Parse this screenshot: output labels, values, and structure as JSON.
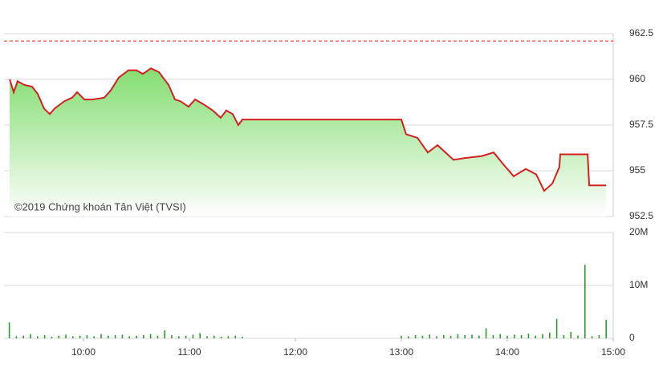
{
  "chart_data": [
    {
      "type": "line",
      "annotation": "©2019 Chứng khoán Tân Việt (TVSI)",
      "xlim": [
        555,
        900
      ],
      "ylim": [
        952.5,
        962.5
      ],
      "yticks": [
        962.5,
        960,
        957.5,
        955,
        952.5
      ],
      "reference_line": 962.1,
      "reference_color": "#e02020",
      "grid": true,
      "series": [
        {
          "color": "#d42020",
          "x": [
            558.2,
            560.5,
            562.7,
            566.4,
            570.9,
            574.1,
            577.7,
            580.9,
            583.6,
            589.1,
            593.6,
            596.4,
            600.5,
            605,
            611.8,
            615.5,
            620,
            625.5,
            630,
            633.6,
            638.2,
            642.7,
            648.2,
            651.8,
            655,
            659.5,
            663.2,
            668.6,
            673.2,
            677.7,
            680.9,
            684.5,
            687.7,
            690,
            780,
            782.7,
            789.1,
            795,
            800.5,
            809.5,
            816.4,
            825.5,
            832.3,
            838.2,
            843.6,
            850.5,
            856.4,
            860.9,
            865.5,
            869.5,
            870,
            885.5,
            886.4,
            895.9
          ],
          "values": [
            960.0,
            959.3,
            959.9,
            959.7,
            959.6,
            959.2,
            958.4,
            958.1,
            958.4,
            958.8,
            959.0,
            959.3,
            958.9,
            958.9,
            959.0,
            959.4,
            960.1,
            960.5,
            960.5,
            960.3,
            960.6,
            960.4,
            959.7,
            958.9,
            958.8,
            958.5,
            958.9,
            958.6,
            958.3,
            957.9,
            958.3,
            958.1,
            957.5,
            957.8,
            957.8,
            957.0,
            956.8,
            956.0,
            956.4,
            955.6,
            955.7,
            955.8,
            956.0,
            955.3,
            954.7,
            955.1,
            954.8,
            953.9,
            954.3,
            955.2,
            955.9,
            955.9,
            954.2,
            954.2
          ]
        }
      ]
    },
    {
      "type": "bar",
      "xlim": [
        555,
        900
      ],
      "xticks": [
        {
          "value": 600,
          "label": "10:00"
        },
        {
          "value": 660,
          "label": "11:00"
        },
        {
          "value": 720,
          "label": "12:00"
        },
        {
          "value": 780,
          "label": "13:00"
        },
        {
          "value": 840,
          "label": "14:00"
        },
        {
          "value": 900,
          "label": "15:00"
        }
      ],
      "ylim": [
        0,
        20000000
      ],
      "yticks": [
        {
          "value": 20000000,
          "label": "20M"
        },
        {
          "value": 10000000,
          "label": "10M"
        },
        0
      ],
      "grid": true,
      "color": "#2e9a2e",
      "x": [
        558,
        562,
        566,
        570,
        574,
        578,
        582,
        586,
        590,
        594,
        598,
        602,
        606,
        610,
        614,
        618,
        622,
        626,
        630,
        634,
        638,
        642,
        646,
        650,
        654,
        658,
        662,
        666,
        670,
        674,
        678,
        682,
        686,
        690,
        780,
        784,
        788,
        792,
        796,
        800,
        804,
        808,
        812,
        816,
        820,
        824,
        828,
        832,
        836,
        840,
        844,
        848,
        852,
        856,
        860,
        864,
        868,
        872,
        876,
        880,
        884,
        888,
        892,
        896
      ],
      "values": [
        3000000,
        400000,
        500000,
        800000,
        400000,
        600000,
        300000,
        500000,
        700000,
        400000,
        500000,
        600000,
        400000,
        800000,
        500000,
        600000,
        700000,
        400000,
        500000,
        600000,
        800000,
        500000,
        1500000,
        600000,
        400000,
        500000,
        700000,
        1000000,
        400000,
        500000,
        300000,
        400000,
        500000,
        300000,
        500000,
        400000,
        600000,
        500000,
        700000,
        400000,
        600000,
        500000,
        800000,
        600000,
        700000,
        500000,
        1900000,
        600000,
        800000,
        500000,
        700000,
        600000,
        900000,
        500000,
        800000,
        1100000,
        3700000,
        600000,
        1200000,
        500000,
        13900000,
        400000,
        600000,
        3500000
      ]
    }
  ]
}
